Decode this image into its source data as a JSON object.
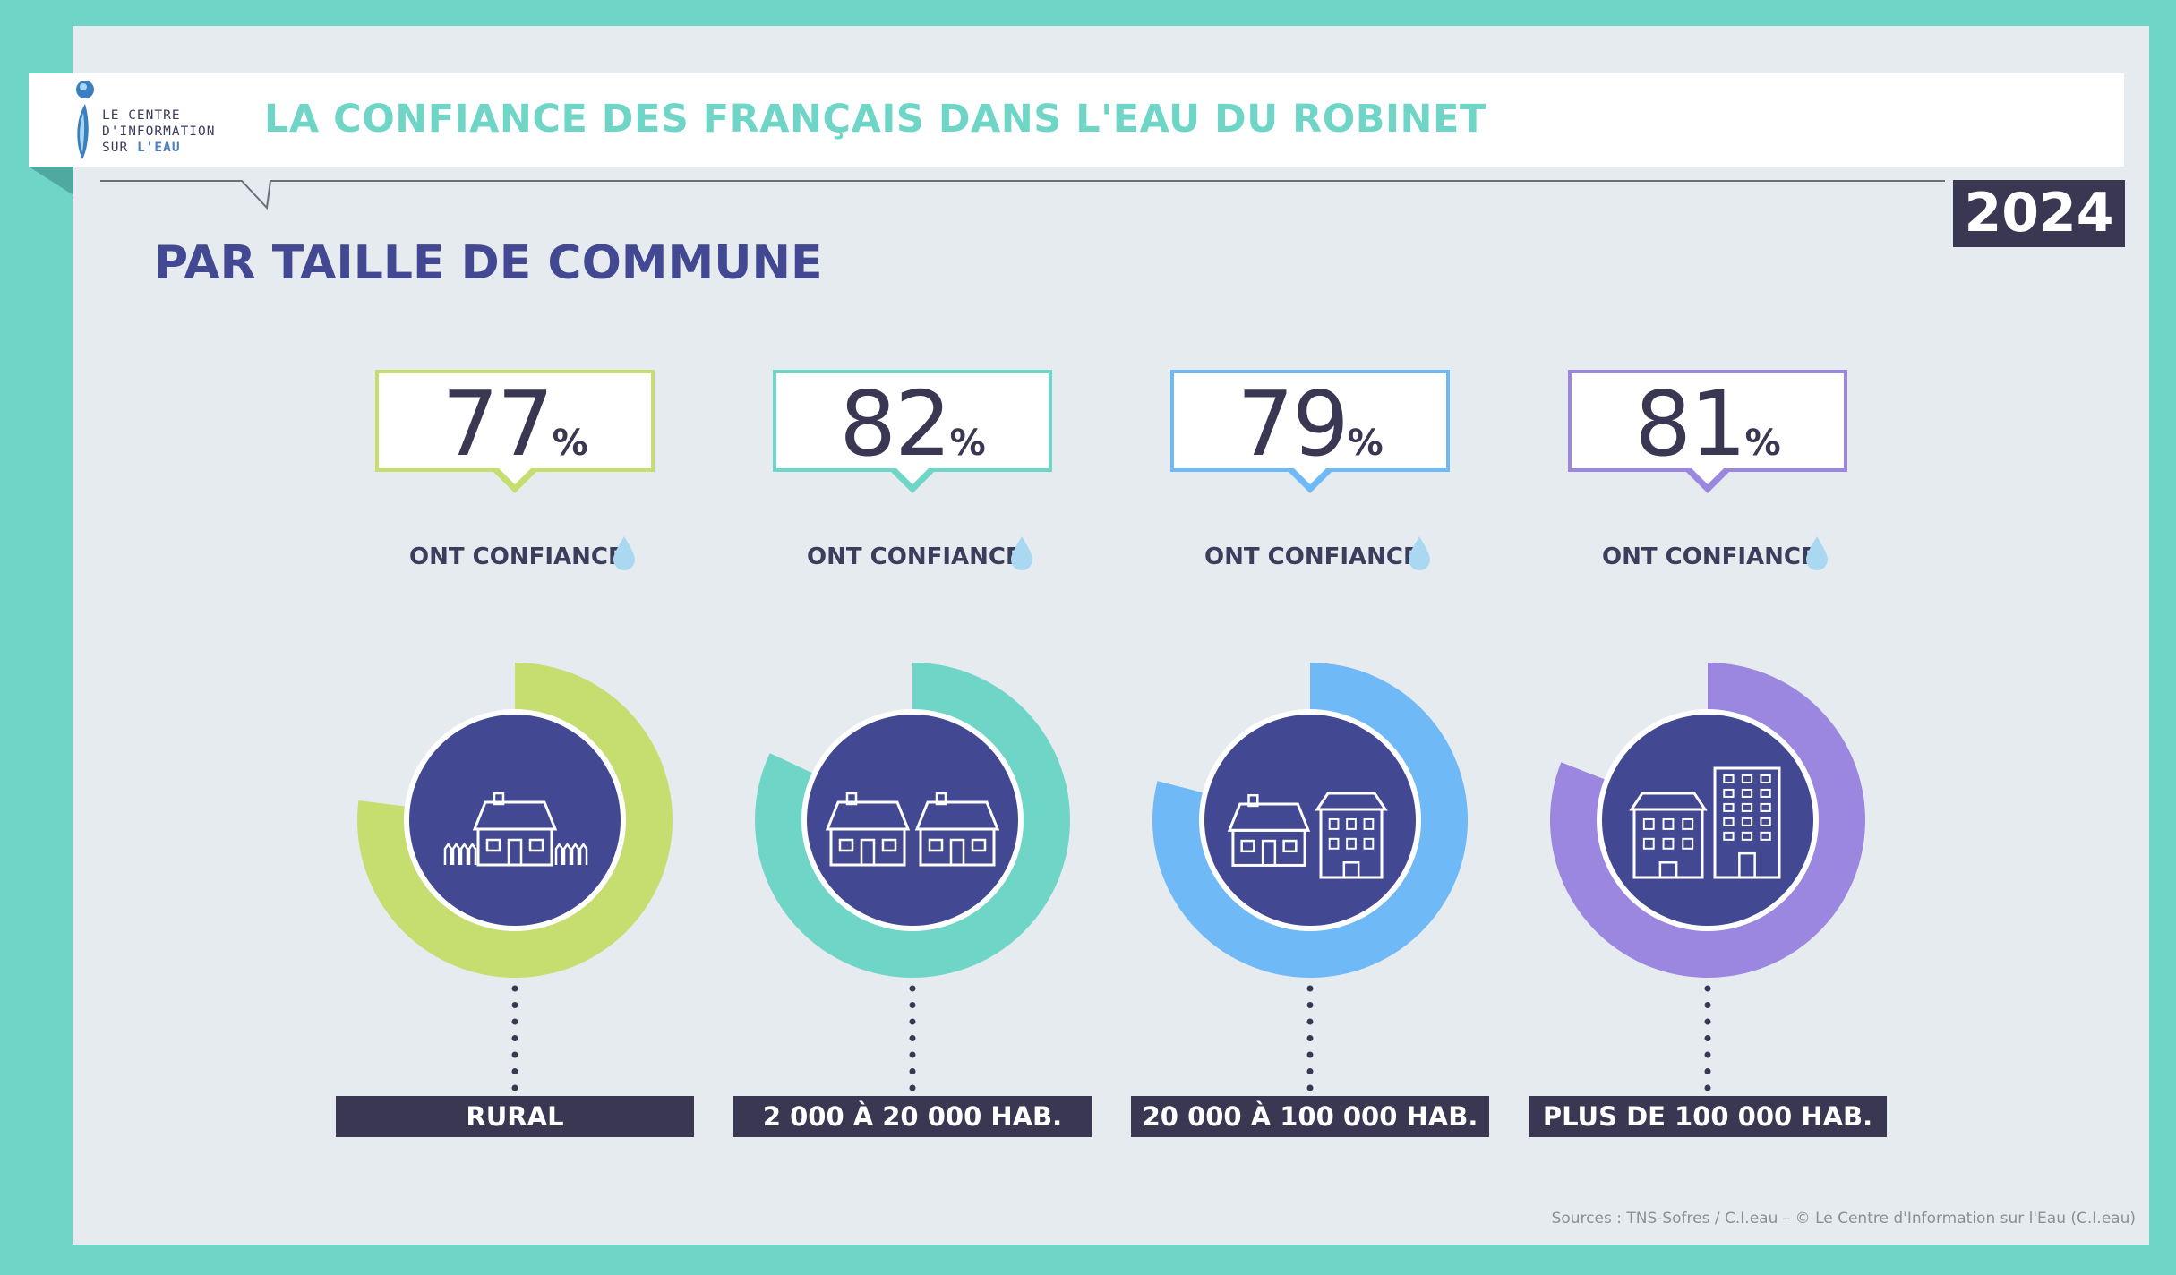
{
  "header": {
    "logo_line1": "LE CENTRE",
    "logo_line2": "D'INFORMATION",
    "logo_line3_a": "SUR",
    "logo_line3_b": "L'EAU",
    "title": "LA CONFIANCE DES FRANÇAIS DANS L'EAU DU ROBINET",
    "year": "2024"
  },
  "section_title": "PAR TAILLE DE COMMUNE",
  "source": "Sources : TNS-Sofres / C.I.eau – © Le Centre d'Information sur l'Eau (C.I.eau)",
  "colors": {
    "background": "#e6ebf0",
    "frame": "#6fd6c7",
    "dark": "#3a3752",
    "navy": "#424891",
    "title": "#6fd6c7",
    "drop": "#a9d8f0"
  },
  "chart_data": {
    "type": "pie",
    "subtype": "donut",
    "value_suffix": "%",
    "caption": "ONT CONFIANCE",
    "categories": [
      "RURAL",
      "2 000 À 20 000 HAB.",
      "20 000 À 100 000 HAB.",
      "PLUS DE 100 000 HAB."
    ],
    "values": [
      77,
      82,
      79,
      81
    ],
    "colors": [
      "#c5de6f",
      "#6fd6c7",
      "#6fb9f6",
      "#9b87e0"
    ],
    "icons": [
      "rural-house-fence-icon",
      "two-houses-icon",
      "house-and-building-icon",
      "building-and-tower-icon"
    ]
  }
}
